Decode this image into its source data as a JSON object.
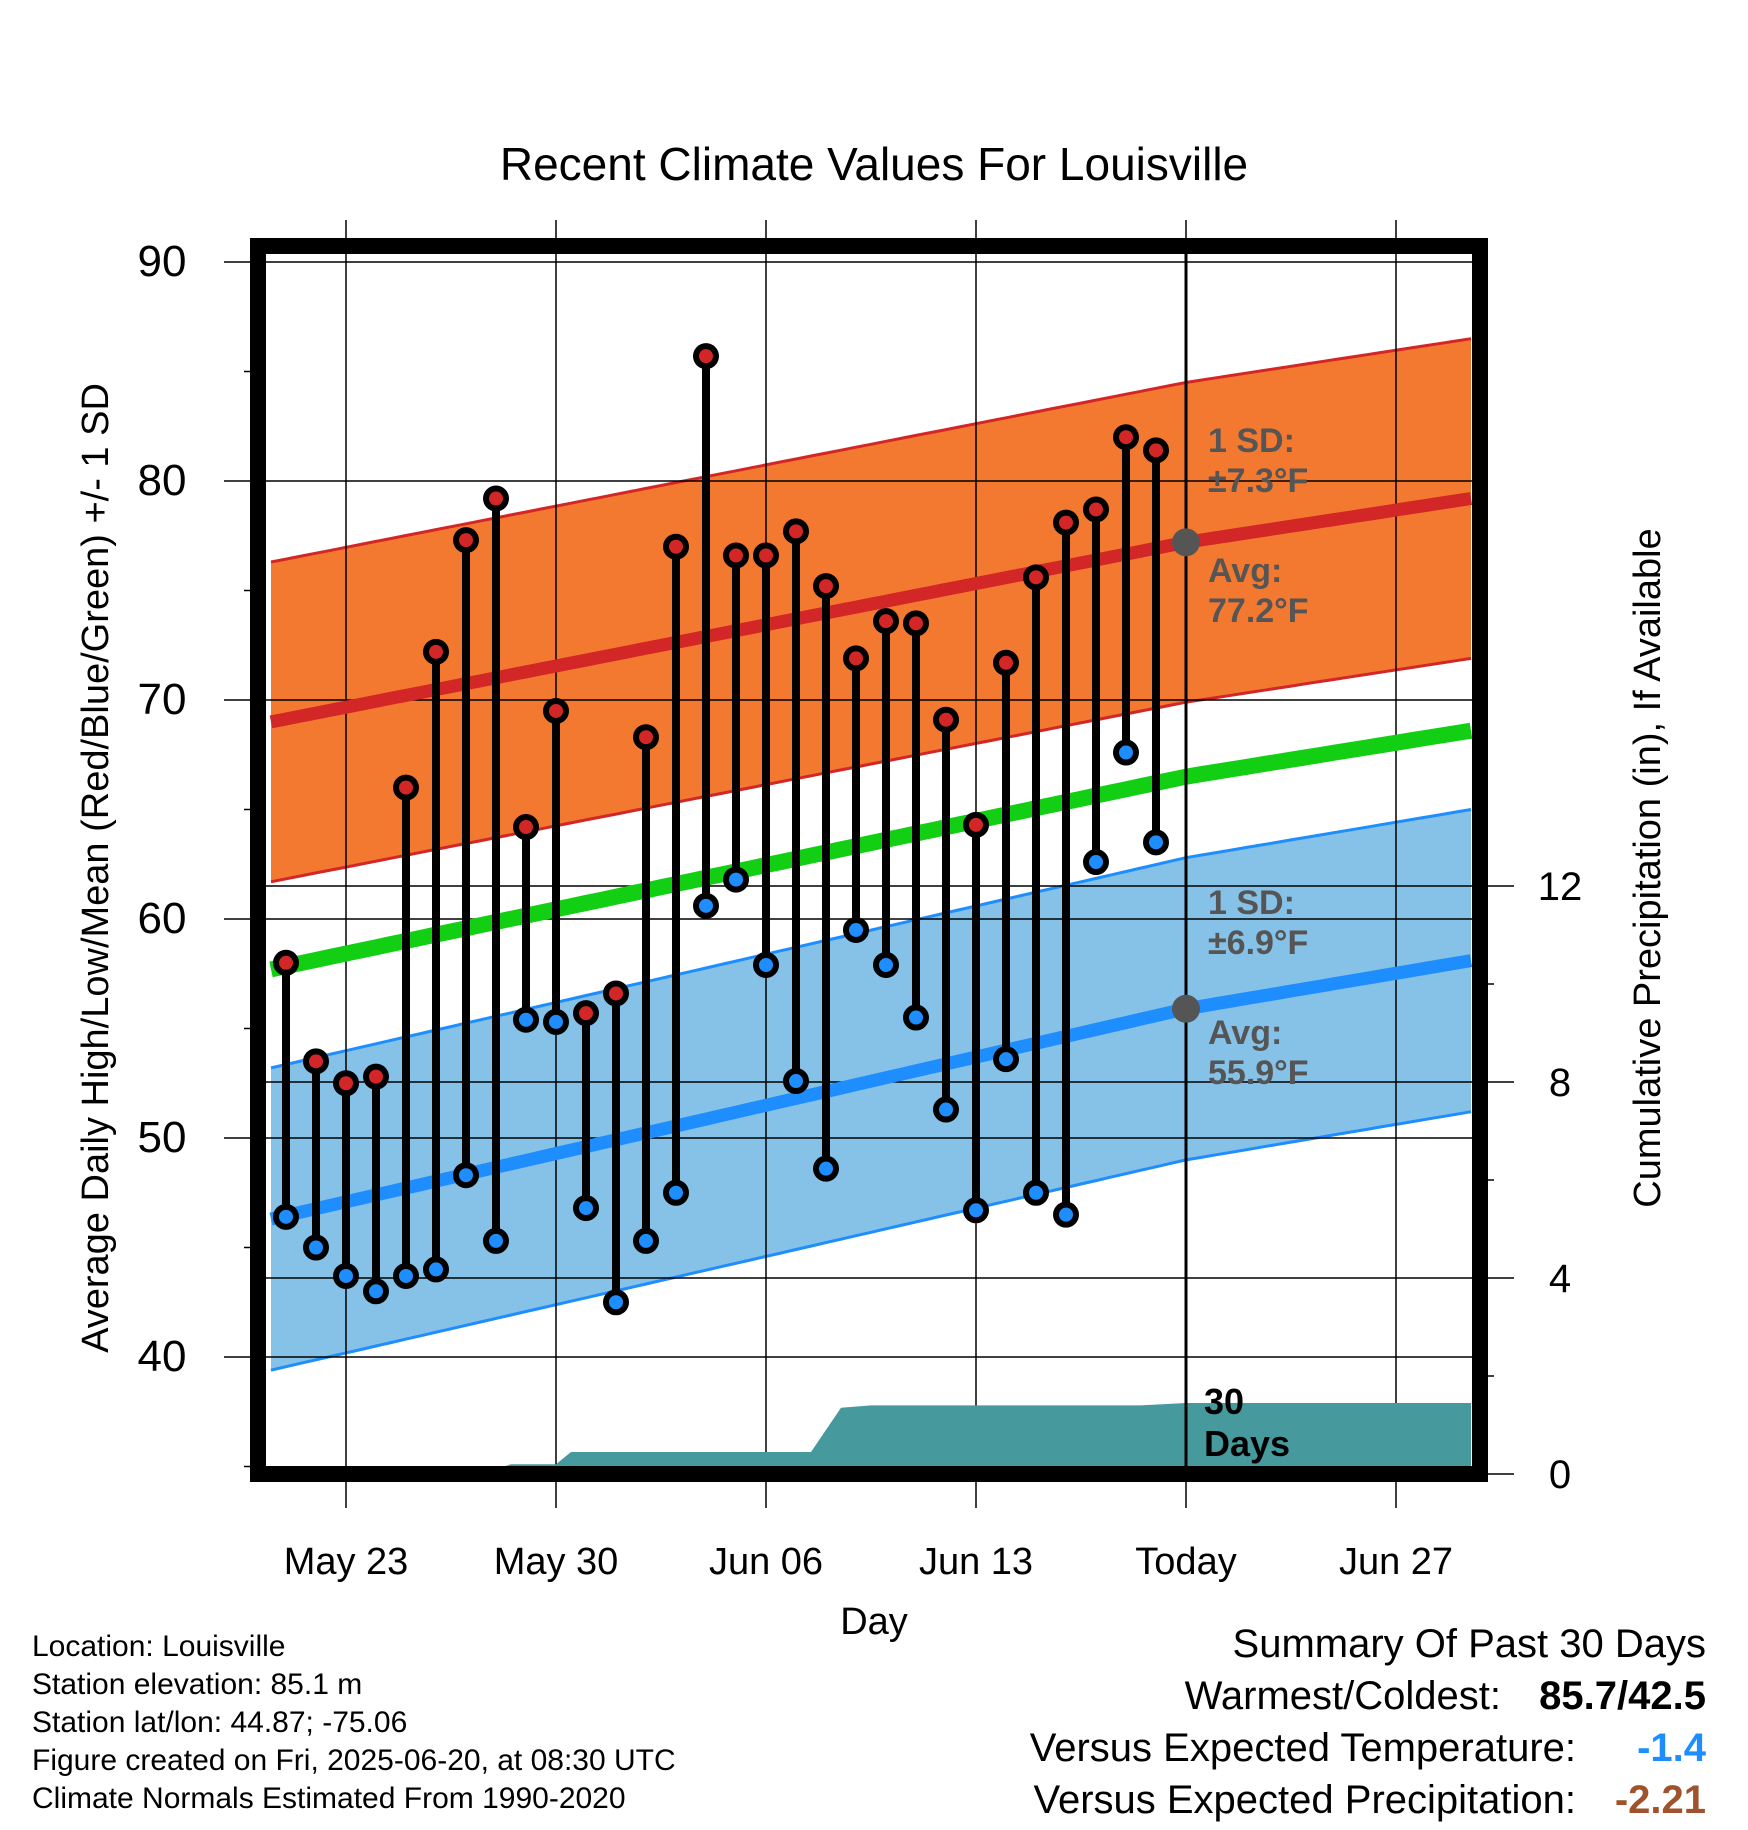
{
  "title": "Recent Climate Values For Louisville",
  "colors": {
    "high_band": "#f47930",
    "high_line": "#d32626",
    "low_band": "#86c1e8",
    "low_line": "#1e8eff",
    "mean_line": "#13cf13",
    "precip": "#46999d",
    "high_dot": "#d32626",
    "low_dot": "#1e8eff",
    "marker": "#555555",
    "annotation": "#555555",
    "temp_blue": "#1e8eff",
    "precip_brown": "#a0522d"
  },
  "chart_data": {
    "type": "range-dot",
    "title": "Recent Climate Values For Louisville",
    "xlabel": "Day",
    "ylabel_left": "Average Daily High/Low/Mean (Red/Blue/Green) +/- 1 SD",
    "ylabel_right": "Cumulative Precipitation (in), If Available",
    "x_range_days": [
      -33.5,
      10.5
    ],
    "x_ticks": [
      {
        "day": -28,
        "label": "May 23"
      },
      {
        "day": -21,
        "label": "May 30"
      },
      {
        "day": -14,
        "label": "Jun 06"
      },
      {
        "day": -7,
        "label": "Jun 13"
      },
      {
        "day": 0,
        "label": "Today"
      },
      {
        "day": 7,
        "label": "Jun 27"
      }
    ],
    "y_left_range": [
      35,
      90
    ],
    "y_left_ticks": [
      40,
      50,
      60,
      70,
      80,
      90
    ],
    "y_right_range": [
      0,
      24
    ],
    "y_right_ticks": [
      0,
      4,
      8,
      12
    ],
    "grid": true,
    "daily_high_low": [
      {
        "day": -30,
        "high": 58.0,
        "low": 46.4
      },
      {
        "day": -29,
        "high": 53.5,
        "low": 45.0
      },
      {
        "day": -28,
        "high": 52.5,
        "low": 43.7
      },
      {
        "day": -27,
        "high": 52.8,
        "low": 43.0
      },
      {
        "day": -26,
        "high": 66.0,
        "low": 43.7
      },
      {
        "day": -25,
        "high": 72.2,
        "low": 44.0
      },
      {
        "day": -24,
        "high": 77.3,
        "low": 48.3
      },
      {
        "day": -23,
        "high": 79.2,
        "low": 45.3
      },
      {
        "day": -22,
        "high": 64.2,
        "low": 55.4
      },
      {
        "day": -21,
        "high": 69.5,
        "low": 55.3
      },
      {
        "day": -20,
        "high": 55.7,
        "low": 46.8
      },
      {
        "day": -19,
        "high": 56.6,
        "low": 42.5
      },
      {
        "day": -18,
        "high": 68.3,
        "low": 45.3
      },
      {
        "day": -17,
        "high": 77.0,
        "low": 47.5
      },
      {
        "day": -16,
        "high": 85.7,
        "low": 60.6
      },
      {
        "day": -15,
        "high": 76.6,
        "low": 61.8
      },
      {
        "day": -14,
        "high": 76.6,
        "low": 57.9
      },
      {
        "day": -13,
        "high": 77.7,
        "low": 52.6
      },
      {
        "day": -12,
        "high": 75.2,
        "low": 48.6
      },
      {
        "day": -11,
        "high": 71.9,
        "low": 59.5
      },
      {
        "day": -10,
        "high": 73.6,
        "low": 57.9
      },
      {
        "day": -9,
        "high": 73.5,
        "low": 55.5
      },
      {
        "day": -8,
        "high": 69.1,
        "low": 51.3
      },
      {
        "day": -7,
        "high": 64.3,
        "low": 46.7
      },
      {
        "day": -6,
        "high": 71.7,
        "low": 53.6
      },
      {
        "day": -5,
        "high": 75.6,
        "low": 47.5
      },
      {
        "day": -4,
        "high": 78.1,
        "low": 46.5
      },
      {
        "day": -3,
        "high": 78.7,
        "low": 62.6
      },
      {
        "day": -2,
        "high": 82.0,
        "low": 67.6
      },
      {
        "day": -1,
        "high": 81.4,
        "low": 63.5
      }
    ],
    "normal_high": {
      "x": [
        -30.5,
        0,
        9.5
      ],
      "values": [
        69.0,
        77.2,
        79.2
      ]
    },
    "normal_high_sd": 7.3,
    "normal_low": {
      "x": [
        -30.5,
        0,
        9.5
      ],
      "values": [
        46.3,
        55.9,
        58.1
      ]
    },
    "normal_low_sd": 6.9,
    "normal_mean": {
      "x": [
        -30.5,
        0,
        9.5
      ],
      "values": [
        57.7,
        66.5,
        68.6
      ]
    },
    "cumulative_precip_in": {
      "x": [
        -23.5,
        -22.5,
        -21.5,
        -21,
        -20.5,
        -13.5,
        -12.5,
        -11.5,
        -10.5,
        -9.5,
        -1.5,
        0,
        9.5
      ],
      "values": [
        0.0,
        0.2,
        0.2,
        0.2,
        0.45,
        0.45,
        0.45,
        1.35,
        1.4,
        1.4,
        1.4,
        1.45,
        1.45
      ]
    },
    "annotations": {
      "high_sd_line1": "1 SD:",
      "high_sd_line2": "±7.3°F",
      "high_avg_line1": "Avg:",
      "high_avg_line2": "77.2°F",
      "low_sd_line1": "1 SD:",
      "low_sd_line2": "±6.9°F",
      "low_avg_line1": "Avg:",
      "low_avg_line2": "55.9°F",
      "days_line1": "30",
      "days_line2": "Days"
    }
  },
  "info": {
    "location": "Location: Louisville",
    "elevation": "Station elevation: 85.1 m",
    "latlon": "Station lat/lon: 44.87; -75.06",
    "created": "Figure created on Fri, 2025-06-20, at 08:30 UTC",
    "normals": "Climate Normals Estimated From 1990-2020"
  },
  "summary": {
    "heading": "Summary Of Past 30 Days",
    "warm_cold_label": "Warmest/Coldest:",
    "warm_cold_value": "85.7/42.5",
    "temp_label": "Versus Expected Temperature:",
    "temp_value": "-1.4",
    "precip_label": "Versus Expected Precipitation:",
    "precip_value": "-2.21"
  }
}
